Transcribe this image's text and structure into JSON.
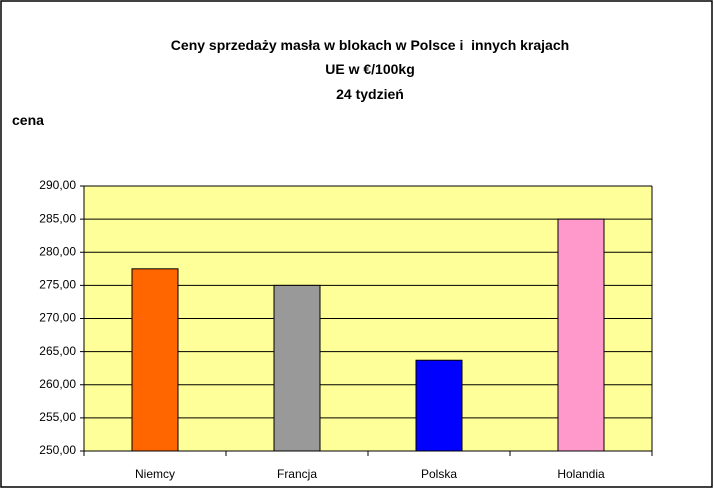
{
  "chart_data": {
    "type": "bar",
    "title": "Ceny sprzedaży masła w blokach w Polsce i  innych krajach UE w €/100kg",
    "subtitle": "24 tydzień",
    "y_label": "cena",
    "categories": [
      "Niemcy",
      "Francja",
      "Polska",
      "Holandia"
    ],
    "values": [
      277.5,
      275,
      263.7,
      285
    ],
    "colors": [
      "#ff6600",
      "#999999",
      "#0000ff",
      "#ff99cc"
    ],
    "ylim": [
      250,
      290
    ],
    "yticks": [
      {
        "value": 250,
        "label": "250,00"
      },
      {
        "value": 255,
        "label": "255,00"
      },
      {
        "value": 260,
        "label": "260,00"
      },
      {
        "value": 265,
        "label": "265,00"
      },
      {
        "value": 270,
        "label": "270,00"
      },
      {
        "value": 275,
        "label": "275,00"
      },
      {
        "value": 280,
        "label": "280,00"
      },
      {
        "value": 285,
        "label": "285,00"
      },
      {
        "value": 290,
        "label": "290,00"
      }
    ],
    "grid": true
  }
}
